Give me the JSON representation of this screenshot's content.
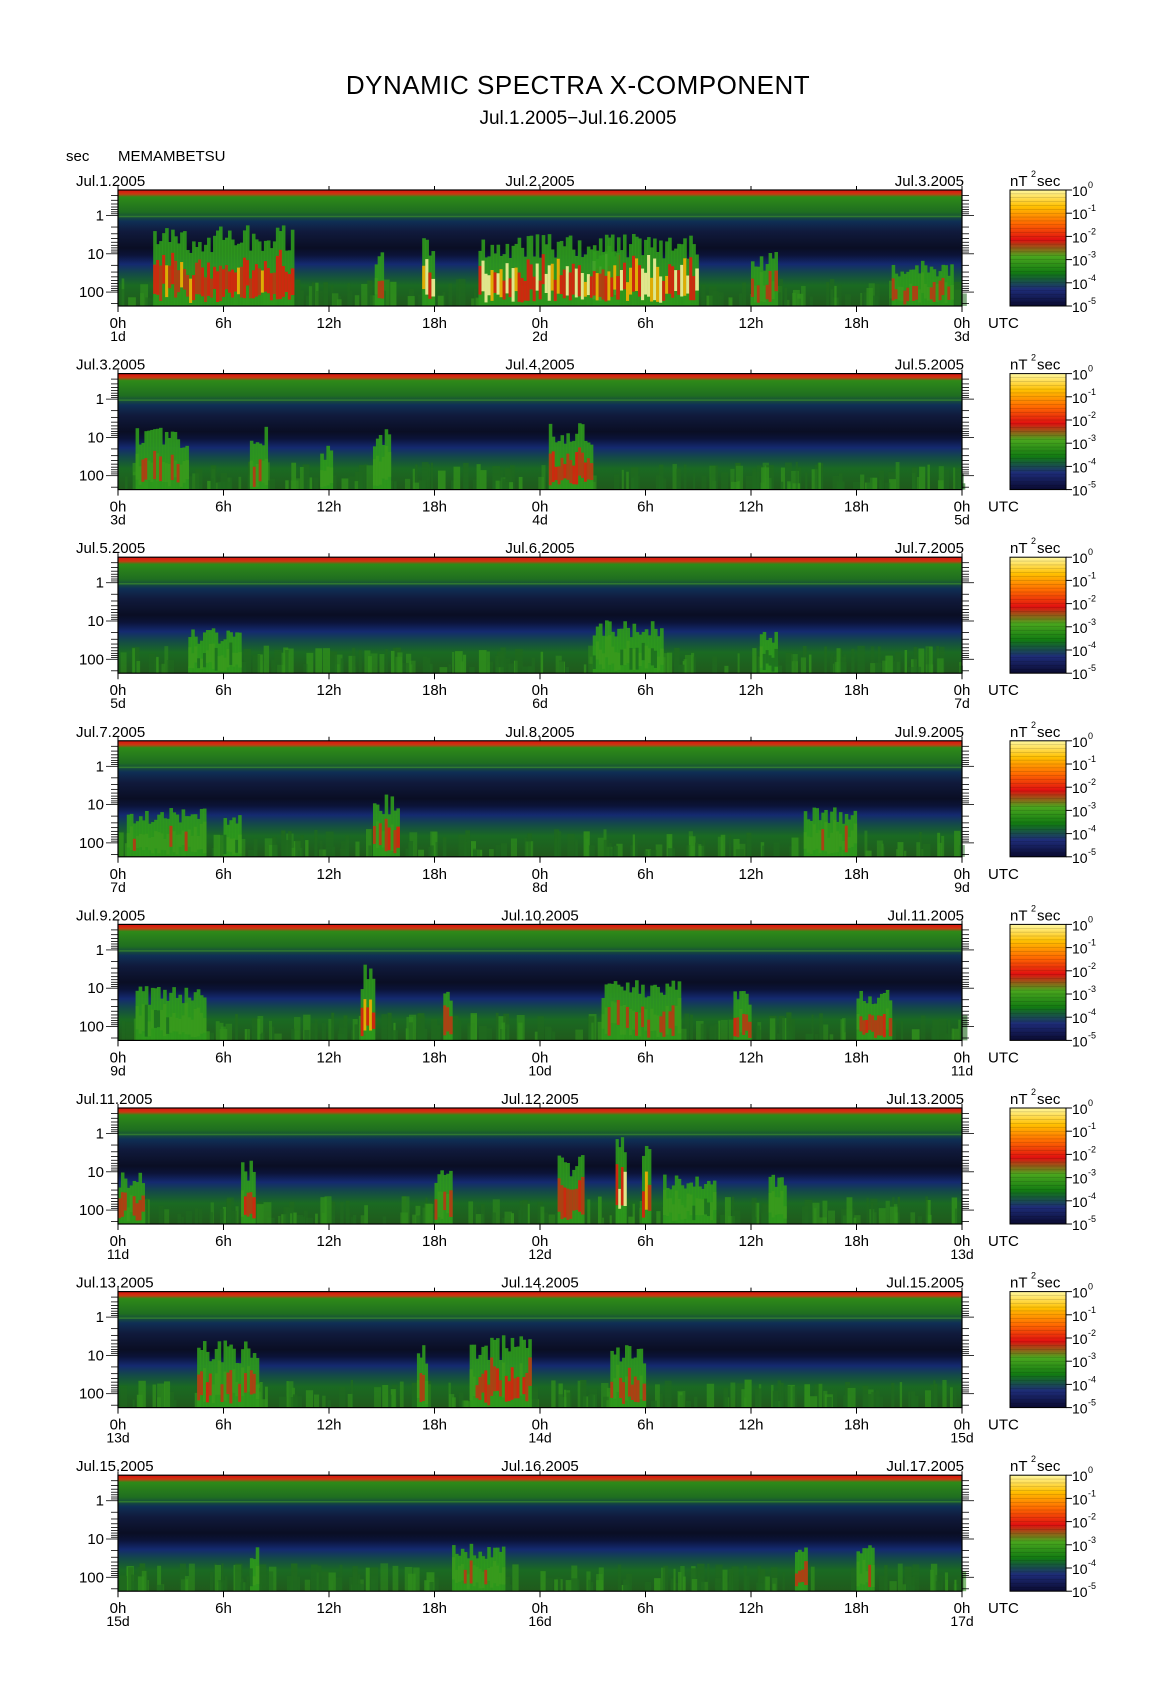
{
  "title": "DYNAMIC SPECTRA X-COMPONENT",
  "subtitle": "Jul.1.2005−Jul.16.2005",
  "y_unit": "sec",
  "station": "MEMAMBETSU",
  "chart_data": {
    "type": "heatmap",
    "title": "DYNAMIC SPECTRA X-COMPONENT",
    "subtitle": "Jul.1.2005−Jul.16.2005",
    "station": "MEMAMBETSU",
    "ylabel": "sec",
    "yticks": [
      "1",
      "10",
      "100"
    ],
    "y_scale": "log",
    "xticks": [
      "0h",
      "6h",
      "12h",
      "18h",
      "0h",
      "6h",
      "12h",
      "18h",
      "0h"
    ],
    "x_unit": "UTC",
    "colorbar": {
      "unit_label": "nT",
      "unit_exp": "2",
      "unit_suffix": "sec",
      "scale": "log",
      "tick_base": "10",
      "tick_exps": [
        "0",
        "-1",
        "-2",
        "-3",
        "-4",
        "-5"
      ],
      "colors": [
        "#0a0a30",
        "#1e2c78",
        "#127a12",
        "#4aa61e",
        "#e01010",
        "#ff6a00",
        "#ffc000",
        "#fff8a0"
      ]
    },
    "panels": [
      {
        "start": "Jul.1.2005",
        "mid": "Jul.2.2005",
        "end": "Jul.3.2005",
        "day_labels": [
          "1d",
          "2d",
          "3d"
        ],
        "events": [
          [
            2,
            10,
            0.9,
            0.85
          ],
          [
            14.6,
            15.1,
            0.6,
            0.7
          ],
          [
            17.3,
            18,
            0.75,
            1.0
          ],
          [
            20.5,
            33,
            0.8,
            1.0
          ],
          [
            27,
            28.5,
            0.8,
            0.9
          ],
          [
            36,
            37.5,
            0.6,
            0.7
          ],
          [
            44,
            47.5,
            0.5,
            0.7
          ]
        ]
      },
      {
        "start": "Jul.3.2005",
        "mid": "Jul.4.2005",
        "end": "Jul.5.2005",
        "day_labels": [
          "3d",
          "4d",
          "5d"
        ],
        "events": [
          [
            1,
            4,
            0.7,
            0.6
          ],
          [
            7.5,
            8.5,
            0.7,
            0.6
          ],
          [
            11.5,
            12.2,
            0.5,
            0.6
          ],
          [
            14.5,
            15.5,
            0.7,
            0.6
          ],
          [
            24.5,
            27,
            0.75,
            0.8
          ]
        ]
      },
      {
        "start": "Jul.5.2005",
        "mid": "Jul.6.2005",
        "end": "Jul.7.2005",
        "day_labels": [
          "5d",
          "6d",
          "7d"
        ],
        "events": [
          [
            4,
            7,
            0.5,
            0.55
          ],
          [
            27,
            31,
            0.6,
            0.55
          ],
          [
            36.5,
            37.5,
            0.5,
            0.5
          ]
        ]
      },
      {
        "start": "Jul.7.2005",
        "mid": "Jul.8.2005",
        "end": "Jul.9.2005",
        "day_labels": [
          "7d",
          "8d",
          "9d"
        ],
        "events": [
          [
            0.5,
            5,
            0.55,
            0.6
          ],
          [
            6,
            7,
            0.5,
            0.55
          ],
          [
            14.5,
            16,
            0.7,
            0.75
          ],
          [
            39,
            42,
            0.55,
            0.6
          ]
        ]
      },
      {
        "start": "Jul.9.2005",
        "mid": "Jul.10.2005",
        "end": "Jul.11.2005",
        "day_labels": [
          "9d",
          "10d",
          "11d"
        ],
        "events": [
          [
            1,
            5,
            0.6,
            0.55
          ],
          [
            13.8,
            14.6,
            0.85,
            0.95
          ],
          [
            18.5,
            19,
            0.6,
            0.7
          ],
          [
            27.5,
            32,
            0.7,
            0.65
          ],
          [
            35,
            36,
            0.6,
            0.7
          ],
          [
            42,
            44,
            0.6,
            0.75
          ]
        ]
      },
      {
        "start": "Jul.11.2005",
        "mid": "Jul.12.2005",
        "end": "Jul.13.2005",
        "day_labels": [
          "11d",
          "12d",
          "13d"
        ],
        "events": [
          [
            0,
            1.5,
            0.6,
            0.7
          ],
          [
            7,
            7.8,
            0.7,
            0.75
          ],
          [
            18,
            19,
            0.6,
            0.7
          ],
          [
            25,
            26.5,
            0.8,
            0.8
          ],
          [
            28.3,
            28.9,
            1.0,
            1.0
          ],
          [
            29.8,
            30.3,
            0.95,
            0.9
          ],
          [
            31,
            34,
            0.55,
            0.55
          ],
          [
            37,
            38,
            0.6,
            0.6
          ]
        ]
      },
      {
        "start": "Jul.13.2005",
        "mid": "Jul.14.2005",
        "end": "Jul.15.2005",
        "day_labels": [
          "13d",
          "14d",
          "15d"
        ],
        "events": [
          [
            4.5,
            8,
            0.75,
            0.7
          ],
          [
            17,
            17.6,
            0.7,
            0.75
          ],
          [
            20,
            23.5,
            0.8,
            0.75
          ],
          [
            28,
            30,
            0.7,
            0.65
          ]
        ]
      },
      {
        "start": "Jul.15.2005",
        "mid": "Jul.16.2005",
        "end": "Jul.17.2005",
        "day_labels": [
          "15d",
          "16d",
          "17d"
        ],
        "events": [
          [
            7.5,
            8,
            0.5,
            0.55
          ],
          [
            19,
            22,
            0.55,
            0.6
          ],
          [
            38.5,
            39.2,
            0.6,
            0.7
          ],
          [
            42,
            43,
            0.55,
            0.6
          ]
        ]
      }
    ]
  }
}
